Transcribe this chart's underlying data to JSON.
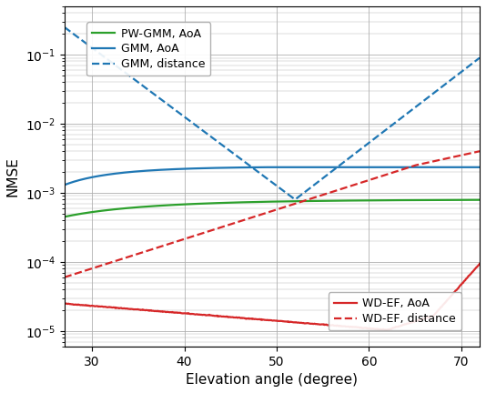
{
  "xlabel": "Elevation angle (degree)",
  "ylabel": "NMSE",
  "xlim": [
    27,
    72
  ],
  "ylim": [
    6e-06,
    0.5
  ],
  "xticks": [
    30,
    40,
    50,
    60,
    70
  ],
  "legend1_entries": [
    "PW-GMM, AoA",
    "GMM, AoA",
    "GMM, distance"
  ],
  "legend2_entries": [
    "WD-EF, AoA",
    "WD-EF, distance"
  ],
  "colors": {
    "green": "#2ca02c",
    "blue": "#1f77b4",
    "red": "#d62728"
  },
  "background_color": "#ffffff",
  "grid_color": "#b0b0b0"
}
